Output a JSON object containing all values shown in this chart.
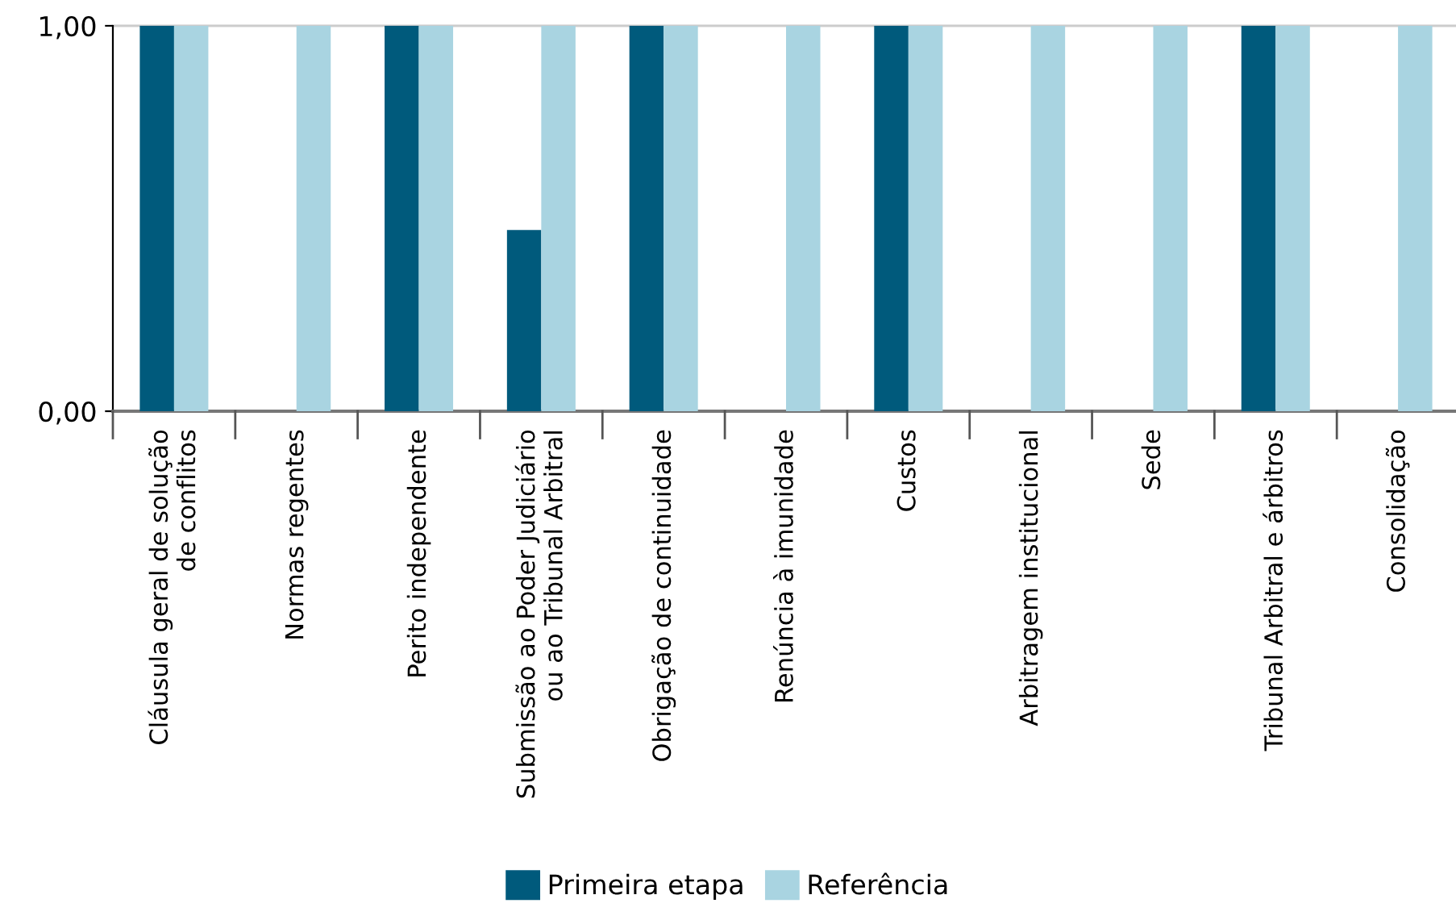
{
  "chart_data": {
    "type": "bar",
    "categories": [
      "Cláusula geral de solução\nde conflitos",
      "Normas regentes",
      "Perito independente",
      "Submissão ao Poder Judiciário\nou ao Tribunal Arbitral",
      "Obrigação de continuidade",
      "Renúncia à imunidade",
      "Custos",
      "Arbitragem institucional",
      "Sede",
      "Tribunal Arbitral e árbitros",
      "Consolidação"
    ],
    "series": [
      {
        "name": "Primeira etapa",
        "color": "#005a7c",
        "values": [
          1,
          0,
          1,
          0.47,
          1,
          0,
          1,
          0,
          0,
          1,
          0
        ]
      },
      {
        "name": "Referência",
        "color": "#a9d4e1",
        "values": [
          1,
          1,
          1,
          1,
          1,
          1,
          1,
          1,
          1,
          1,
          1
        ]
      }
    ],
    "ylim": [
      0,
      1
    ],
    "yticks": [
      {
        "value": 0,
        "label": "0,00"
      },
      {
        "value": 1,
        "label": "1,00"
      }
    ],
    "ref_lines": [
      {
        "axis": "y",
        "value": 1,
        "color": "#cccccc"
      }
    ],
    "legend": "bottom"
  }
}
